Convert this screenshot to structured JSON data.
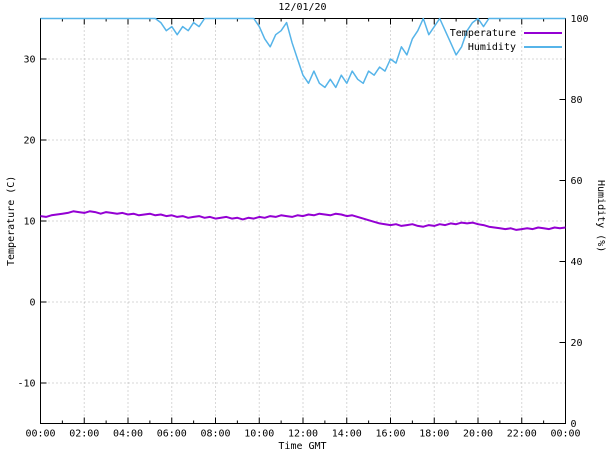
{
  "chart_data": {
    "type": "line",
    "title": "12/01/20",
    "xlabel": "Time GMT",
    "ylabel_left": "Temperature (C)",
    "ylabel_right": "Humidity (%)",
    "grid": true,
    "legend_position": "top-right",
    "x_range": [
      0,
      24
    ],
    "y_left_range": [
      -15,
      35
    ],
    "y_right_range": [
      0,
      100
    ],
    "x_tick_hours": [
      0,
      2,
      4,
      6,
      8,
      10,
      12,
      14,
      16,
      18,
      20,
      22,
      24
    ],
    "x_tick_labels": [
      "00:00",
      "02:00",
      "04:00",
      "06:00",
      "08:00",
      "10:00",
      "12:00",
      "14:00",
      "16:00",
      "18:00",
      "20:00",
      "22:00",
      "00:00"
    ],
    "y_left_ticks": [
      -10,
      0,
      10,
      20,
      30
    ],
    "y_right_ticks": [
      0,
      20,
      40,
      60,
      80,
      100
    ],
    "grid_color": "#b0b0b0",
    "x_start_hour": 0,
    "x_step_hours": 0.25,
    "series": [
      {
        "name": "Temperature",
        "axis": "left",
        "color": "#9400d3",
        "width": 2,
        "values": [
          10.6,
          10.5,
          10.7,
          10.8,
          10.9,
          11.0,
          11.2,
          11.1,
          11.0,
          11.2,
          11.1,
          10.9,
          11.1,
          11.0,
          10.9,
          11.0,
          10.8,
          10.9,
          10.7,
          10.8,
          10.9,
          10.7,
          10.8,
          10.6,
          10.7,
          10.5,
          10.6,
          10.4,
          10.5,
          10.6,
          10.4,
          10.5,
          10.3,
          10.4,
          10.5,
          10.3,
          10.4,
          10.2,
          10.4,
          10.3,
          10.5,
          10.4,
          10.6,
          10.5,
          10.7,
          10.6,
          10.5,
          10.7,
          10.6,
          10.8,
          10.7,
          10.9,
          10.8,
          10.7,
          10.9,
          10.8,
          10.6,
          10.7,
          10.5,
          10.3,
          10.1,
          9.9,
          9.7,
          9.6,
          9.5,
          9.6,
          9.4,
          9.5,
          9.6,
          9.4,
          9.3,
          9.5,
          9.4,
          9.6,
          9.5,
          9.7,
          9.6,
          9.8,
          9.7,
          9.8,
          9.6,
          9.5,
          9.3,
          9.2,
          9.1,
          9.0,
          9.1,
          8.9,
          9.0,
          9.1,
          9.0,
          9.2,
          9.1,
          9.0,
          9.2,
          9.1,
          9.2
        ]
      },
      {
        "name": "Humidity",
        "axis": "right",
        "color": "#56b4e9",
        "width": 1.5,
        "values": [
          100,
          100,
          100,
          100,
          100,
          100,
          100,
          100,
          100,
          100,
          100,
          100,
          100,
          100,
          100,
          100,
          100,
          100,
          100,
          100,
          100,
          100,
          99,
          97,
          98,
          96,
          98,
          97,
          99,
          98,
          100,
          100,
          100,
          100,
          100,
          100,
          100,
          100,
          100,
          100,
          98,
          95,
          93,
          96,
          97,
          99,
          94,
          90,
          86,
          84,
          87,
          84,
          83,
          85,
          83,
          86,
          84,
          87,
          85,
          84,
          87,
          86,
          88,
          87,
          90,
          89,
          93,
          91,
          95,
          97,
          100,
          96,
          98,
          100,
          97,
          94,
          91,
          93,
          97,
          99,
          100,
          98,
          100,
          100,
          100,
          100,
          100,
          100,
          100,
          100,
          100,
          100,
          100,
          100,
          100,
          100,
          100
        ]
      }
    ]
  }
}
